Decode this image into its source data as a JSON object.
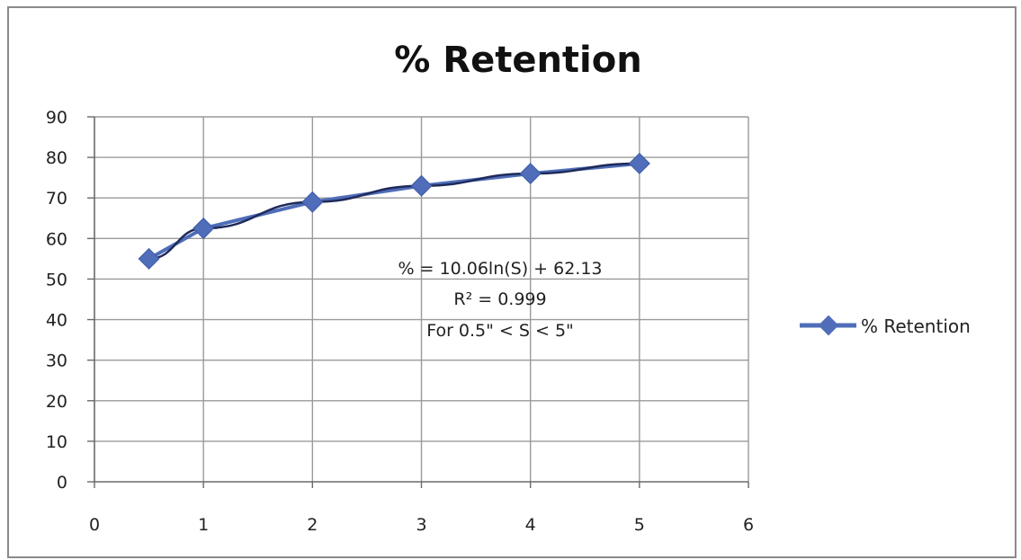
{
  "chart_data": {
    "type": "line",
    "title": "% Retention",
    "xlabel": "",
    "ylabel": "",
    "x": [
      0.5,
      1,
      2,
      3,
      4,
      5
    ],
    "series": [
      {
        "name": "% Retention",
        "values": [
          55,
          62.5,
          69,
          73,
          76,
          78.5
        ]
      }
    ],
    "xlim": [
      0,
      6
    ],
    "ylim": [
      0,
      90
    ],
    "x_ticks": [
      "0",
      "1",
      "2",
      "3",
      "4",
      "5",
      "6"
    ],
    "y_ticks": [
      "0",
      "10",
      "20",
      "30",
      "40",
      "50",
      "60",
      "70",
      "80",
      "90"
    ],
    "grid": true,
    "legend_position": "right",
    "series_color": "#4f6db8",
    "line_color": "#1f2a5a",
    "annotation": [
      "% = 10.06ln(S) + 62.13",
      "R² = 0.999",
      "For 0.5\" < S < 5\""
    ]
  }
}
